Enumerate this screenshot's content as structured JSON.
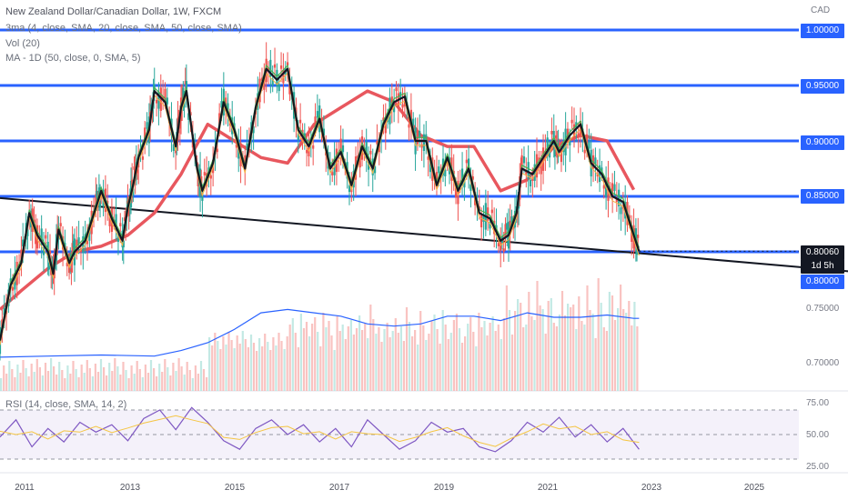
{
  "header": {
    "title": "New Zealand Dollar/Canadian Dollar, 1W, FXCM",
    "ind_mas": "3ma (4, close, SMA, 20, close, SMA, 50, close, SMA)",
    "ind_vol": "Vol (20)",
    "ind_ma1d": "MA - 1D (50, close, 0, SMA, 5)",
    "ind_rsi": "RSI (14, close, SMA, 14, 2)",
    "currency": "CAD"
  },
  "price_tags": {
    "last": "0.80060",
    "countdown": "1d 5h"
  },
  "chart_data": {
    "type": "line",
    "x_unit": "year",
    "x_ticks": [
      "2011",
      "2013",
      "2015",
      "2017",
      "2019",
      "2021",
      "2023",
      "2025"
    ],
    "x_tick_values": [
      2011,
      2013,
      2015,
      2017,
      2019,
      2021,
      2023,
      2025
    ],
    "xlim": [
      2010.6,
      2025.6
    ],
    "ylim": [
      0.69,
      1.01
    ],
    "y_ticks_blue": [
      "1.00000",
      "0.95000",
      "0.90000",
      "0.85000",
      "0.80000"
    ],
    "y_ticks_gray": [
      "0.75000",
      "0.70000"
    ],
    "horizontal_levels": [
      1.0,
      0.95,
      0.9,
      0.85,
      0.8
    ],
    "trendline": {
      "x": [
        2010.6,
        2025.6
      ],
      "y": [
        0.8485,
        0.7863
      ]
    },
    "last_value": 0.8006,
    "series": [
      {
        "name": "price",
        "color": "#131722",
        "x": [
          2010.6,
          2010.8,
          2011.0,
          2011.15,
          2011.3,
          2011.5,
          2011.6,
          2011.7,
          2011.9,
          2012.0,
          2012.2,
          2012.4,
          2012.5,
          2012.7,
          2012.9,
          2013.0,
          2013.1,
          2013.2,
          2013.4,
          2013.5,
          2013.7,
          2013.9,
          2014.0,
          2014.1,
          2014.3,
          2014.4,
          2014.6,
          2014.8,
          2015.0,
          2015.2,
          2015.4,
          2015.6,
          2015.8,
          2016.0,
          2016.2,
          2016.4,
          2016.6,
          2016.8,
          2017.0,
          2017.2,
          2017.4,
          2017.6,
          2017.8,
          2018.0,
          2018.2,
          2018.4,
          2018.6,
          2018.8,
          2019.0,
          2019.2,
          2019.4,
          2019.6,
          2019.8,
          2020.0,
          2020.15,
          2020.3,
          2020.4,
          2020.6,
          2020.8,
          2021.0,
          2021.1,
          2021.3,
          2021.5,
          2021.7,
          2021.9,
          2022.1,
          2022.3,
          2022.5,
          2022.6
        ],
        "y": [
          0.72,
          0.77,
          0.79,
          0.835,
          0.815,
          0.8,
          0.78,
          0.82,
          0.79,
          0.8,
          0.81,
          0.84,
          0.855,
          0.83,
          0.81,
          0.84,
          0.86,
          0.885,
          0.91,
          0.945,
          0.935,
          0.895,
          0.93,
          0.945,
          0.875,
          0.855,
          0.88,
          0.935,
          0.91,
          0.875,
          0.93,
          0.965,
          0.955,
          0.965,
          0.91,
          0.895,
          0.92,
          0.875,
          0.89,
          0.86,
          0.895,
          0.875,
          0.915,
          0.935,
          0.94,
          0.9,
          0.9,
          0.86,
          0.885,
          0.855,
          0.875,
          0.835,
          0.83,
          0.81,
          0.815,
          0.835,
          0.875,
          0.87,
          0.885,
          0.9,
          0.89,
          0.905,
          0.915,
          0.88,
          0.87,
          0.85,
          0.845,
          0.815,
          0.8006
        ]
      },
      {
        "name": "MA - 1D",
        "color": "#e8575e",
        "x": [
          2010.6,
          2011.0,
          2011.5,
          2012.0,
          2012.5,
          2013.0,
          2013.5,
          2014.0,
          2014.5,
          2015.0,
          2015.5,
          2016.0,
          2016.5,
          2017.0,
          2017.5,
          2018.0,
          2018.5,
          2019.0,
          2019.5,
          2020.0,
          2020.5,
          2021.0,
          2021.5,
          2022.0,
          2022.5
        ],
        "y": [
          0.748,
          0.765,
          0.785,
          0.8,
          0.805,
          0.815,
          0.835,
          0.87,
          0.915,
          0.9,
          0.885,
          0.88,
          0.915,
          0.93,
          0.945,
          0.935,
          0.905,
          0.895,
          0.895,
          0.855,
          0.865,
          0.895,
          0.905,
          0.9,
          0.856
        ]
      },
      {
        "name": "Vol (20)",
        "color": "#2962ff",
        "x": [
          2010.6,
          2011.5,
          2012.5,
          2013.5,
          2014.0,
          2014.5,
          2015.0,
          2015.5,
          2016.0,
          2016.5,
          2017.0,
          2017.5,
          2018.0,
          2018.5,
          2019.0,
          2019.5,
          2020.0,
          2020.5,
          2021.0,
          2021.5,
          2022.0,
          2022.5,
          2022.6
        ],
        "y": [
          0.705,
          0.706,
          0.707,
          0.706,
          0.711,
          0.718,
          0.73,
          0.745,
          0.748,
          0.745,
          0.742,
          0.735,
          0.733,
          0.735,
          0.742,
          0.742,
          0.738,
          0.745,
          0.741,
          0.741,
          0.743,
          0.74,
          0.74
        ]
      },
      {
        "name": "RSI (14, close, SMA, 14, 2)",
        "color": "#7e57c2",
        "ylim": [
          20,
          80
        ],
        "levels": [
          70,
          50,
          30
        ],
        "x": [
          2010.6,
          2010.9,
          2011.2,
          2011.5,
          2011.8,
          2012.1,
          2012.4,
          2012.7,
          2013.0,
          2013.3,
          2013.6,
          2013.9,
          2014.2,
          2014.5,
          2014.8,
          2015.1,
          2015.4,
          2015.7,
          2016.0,
          2016.3,
          2016.6,
          2016.9,
          2017.2,
          2017.5,
          2017.8,
          2018.1,
          2018.4,
          2018.7,
          2019.0,
          2019.3,
          2019.6,
          2019.9,
          2020.2,
          2020.5,
          2020.8,
          2021.1,
          2021.4,
          2021.7,
          2022.0,
          2022.3,
          2022.6
        ],
        "y": [
          48,
          62,
          40,
          55,
          44,
          60,
          52,
          58,
          45,
          63,
          70,
          54,
          72,
          60,
          45,
          38,
          55,
          62,
          50,
          58,
          44,
          55,
          40,
          62,
          50,
          38,
          45,
          60,
          52,
          55,
          40,
          36,
          45,
          60,
          52,
          64,
          48,
          58,
          44,
          55,
          38
        ]
      }
    ]
  }
}
